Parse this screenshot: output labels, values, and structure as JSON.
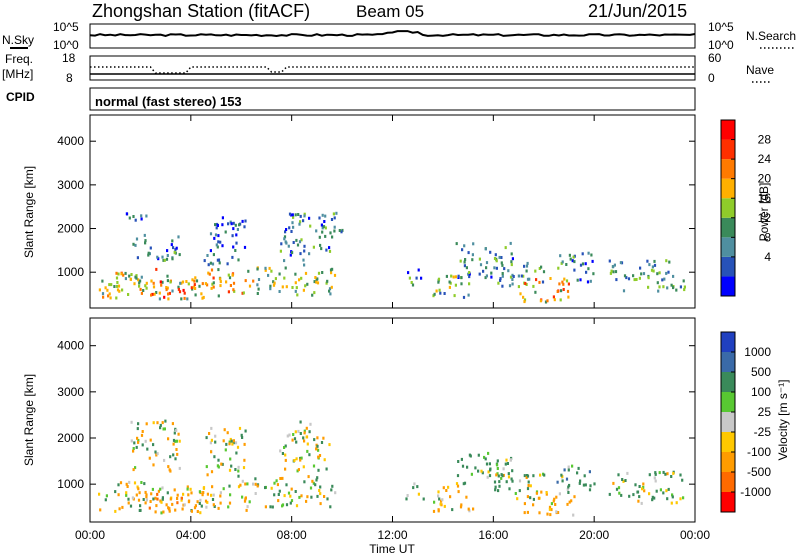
{
  "header": {
    "station": "Zhongshan Station (fitACF)",
    "beam": "Beam 05",
    "date": "21/Jun/2015"
  },
  "top_panels": {
    "nsky_label": "N.Sky",
    "nsky_ticks": [
      "10^5",
      "10^0"
    ],
    "nsearch_label": "N.Search",
    "nsearch_ticks": [
      "10^5",
      "10^0"
    ],
    "freq_label": "Freq.",
    "freq_unit": "[MHz]",
    "freq_ticks": [
      "18",
      "8"
    ],
    "nave_label": "Nave",
    "nave_ticks": [
      "60",
      "0"
    ],
    "cpid_label": "CPID",
    "cpid_text": "normal (fast stereo) 153"
  },
  "chart_data": [
    {
      "type": "heatmap",
      "panel": "power",
      "ylabel": "Slant Range [km]",
      "ylim": [
        180,
        4600
      ],
      "yticks": [
        "4000",
        "3000",
        "2000",
        "1000"
      ],
      "xlim_hours": [
        0,
        24
      ],
      "colorbar_label": "Power [dB]",
      "colorbar_ticks": [
        "28",
        "24",
        "20",
        "16",
        "12",
        "8",
        "4"
      ],
      "colors": [
        "#0000ff",
        "#2752b8",
        "#4f8fa0",
        "#3a8a5a",
        "#8fcc2a",
        "#ffb000",
        "#ff7a00",
        "#ff3000",
        "#ff0000"
      ],
      "blobs": [
        {
          "t": [
            0.3,
            4.5
          ],
          "r": [
            400,
            1000
          ],
          "v": 18
        },
        {
          "t": [
            2.3,
            4.2
          ],
          "r": [
            420,
            850
          ],
          "v": 27
        },
        {
          "t": [
            1.0,
            2.6
          ],
          "r": [
            700,
            1100
          ],
          "v": 22
        },
        {
          "t": [
            1.6,
            3.6
          ],
          "r": [
            1300,
            1900
          ],
          "v": 9
        },
        {
          "t": [
            1.4,
            2.2
          ],
          "r": [
            2000,
            2400
          ],
          "v": 8
        },
        {
          "t": [
            4.4,
            6.5
          ],
          "r": [
            450,
            1100
          ],
          "v": 22
        },
        {
          "t": [
            4.5,
            6.2
          ],
          "r": [
            1200,
            2300
          ],
          "v": 8
        },
        {
          "t": [
            6.5,
            9.7
          ],
          "r": [
            500,
            1200
          ],
          "v": 16
        },
        {
          "t": [
            7.5,
            9.5
          ],
          "r": [
            1300,
            2400
          ],
          "v": 10
        },
        {
          "t": [
            9.0,
            10.0
          ],
          "r": [
            1800,
            2400
          ],
          "v": 11
        },
        {
          "t": [
            12.5,
            13.2
          ],
          "r": [
            700,
            1100
          ],
          "v": 10
        },
        {
          "t": [
            13.5,
            15.2
          ],
          "r": [
            400,
            1000
          ],
          "v": 14
        },
        {
          "t": [
            14.5,
            16.8
          ],
          "r": [
            900,
            1700
          ],
          "v": 9
        },
        {
          "t": [
            16.0,
            18.0
          ],
          "r": [
            700,
            1300
          ],
          "v": 12
        },
        {
          "t": [
            17.0,
            19.2
          ],
          "r": [
            350,
            900
          ],
          "v": 22
        },
        {
          "t": [
            18.5,
            20.0
          ],
          "r": [
            800,
            1500
          ],
          "v": 9
        },
        {
          "t": [
            20.5,
            23.6
          ],
          "r": [
            600,
            1300
          ],
          "v": 12
        }
      ]
    },
    {
      "type": "heatmap",
      "panel": "velocity",
      "ylabel": "Slant Range [km]",
      "ylim": [
        180,
        4600
      ],
      "yticks": [
        "4000",
        "3000",
        "2000",
        "1000"
      ],
      "xlim_hours": [
        0,
        24
      ],
      "xticks": [
        "00:00",
        "04:00",
        "08:00",
        "12:00",
        "16:00",
        "20:00",
        "00:00"
      ],
      "xlabel": "Time UT",
      "colorbar_label": "Velocity [m s⁻¹]",
      "colorbar_ticks": [
        "1000",
        "500",
        "100",
        "25",
        "-25",
        "-100",
        "-500",
        "-1000"
      ],
      "colors": [
        "#ff0000",
        "#ff6a00",
        "#ff9c00",
        "#ffc800",
        "#c8c8c8",
        "#58c832",
        "#3a8a5a",
        "#3a6aa8",
        "#2040c0"
      ],
      "blobs": [
        {
          "t": [
            0.3,
            4.5
          ],
          "r": [
            400,
            1000
          ],
          "v": -100
        },
        {
          "t": [
            2.3,
            4.2
          ],
          "r": [
            420,
            850
          ],
          "v": -400
        },
        {
          "t": [
            1.0,
            2.6
          ],
          "r": [
            700,
            1100
          ],
          "v": -60
        },
        {
          "t": [
            1.6,
            3.6
          ],
          "r": [
            1300,
            2400
          ],
          "v": 0
        },
        {
          "t": [
            4.4,
            6.5
          ],
          "r": [
            450,
            1100
          ],
          "v": -80
        },
        {
          "t": [
            4.5,
            6.2
          ],
          "r": [
            1200,
            2300
          ],
          "v": 20
        },
        {
          "t": [
            6.5,
            9.7
          ],
          "r": [
            500,
            1200
          ],
          "v": 60
        },
        {
          "t": [
            7.5,
            9.5
          ],
          "r": [
            1300,
            2400
          ],
          "v": 0
        },
        {
          "t": [
            12.5,
            13.2
          ],
          "r": [
            700,
            1100
          ],
          "v": 150
        },
        {
          "t": [
            13.5,
            15.2
          ],
          "r": [
            400,
            1000
          ],
          "v": -120
        },
        {
          "t": [
            14.5,
            16.8
          ],
          "r": [
            900,
            1700
          ],
          "v": 200
        },
        {
          "t": [
            16.0,
            18.0
          ],
          "r": [
            700,
            1300
          ],
          "v": 150
        },
        {
          "t": [
            17.0,
            19.2
          ],
          "r": [
            350,
            900
          ],
          "v": -200
        },
        {
          "t": [
            18.5,
            20.0
          ],
          "r": [
            800,
            1500
          ],
          "v": 250
        },
        {
          "t": [
            20.5,
            23.6
          ],
          "r": [
            600,
            1300
          ],
          "v": 120
        }
      ]
    }
  ]
}
